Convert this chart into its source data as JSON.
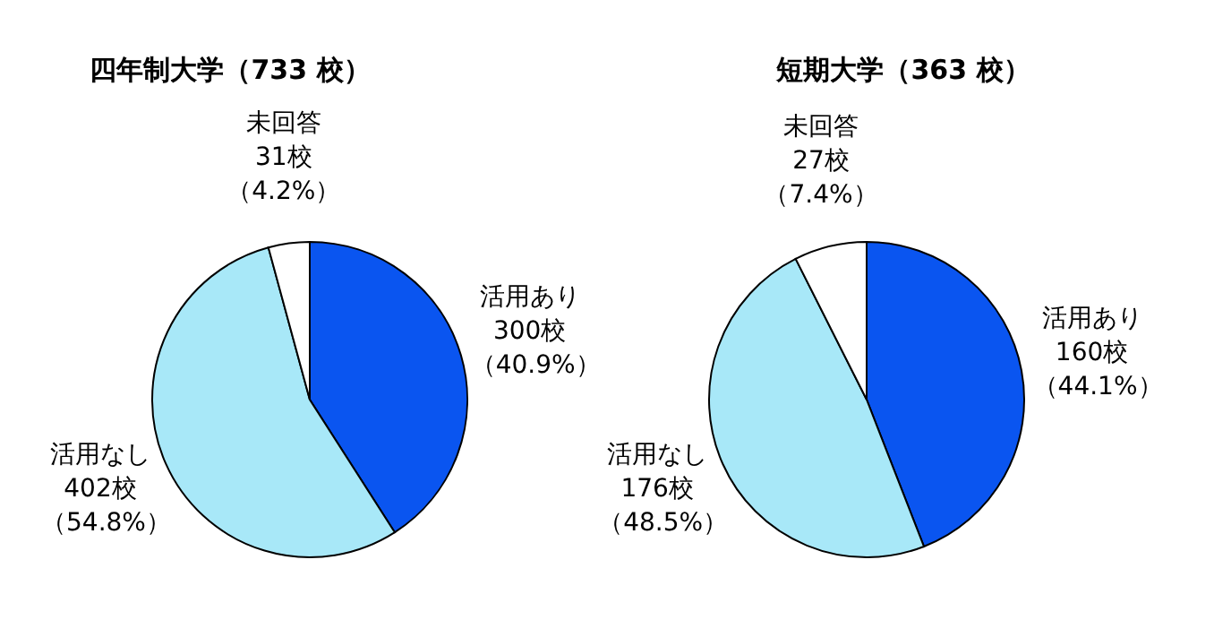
{
  "chart_data": [
    {
      "type": "pie",
      "title": "四年制大学（733 校）",
      "categories": [
        "活用あり",
        "活用なし",
        "未回答"
      ],
      "values": [
        300,
        402,
        31
      ],
      "colors": [
        "#0a55f0",
        "#a8e8f8",
        "#ffffff"
      ],
      "value_labels": [
        "300校（40.9%）",
        "402校（54.8%）",
        "31校（4.2%）"
      ],
      "legend": false
    },
    {
      "type": "pie",
      "title": "短期大学（363 校）",
      "categories": [
        "活用あり",
        "活用なし",
        "未回答"
      ],
      "values": [
        160,
        176,
        27
      ],
      "colors": [
        "#0a55f0",
        "#a8e8f8",
        "#ffffff"
      ],
      "value_labels": [
        "160校（44.1%）",
        "176校（48.5%）",
        "27校（7.4%）"
      ],
      "legend": false
    }
  ]
}
